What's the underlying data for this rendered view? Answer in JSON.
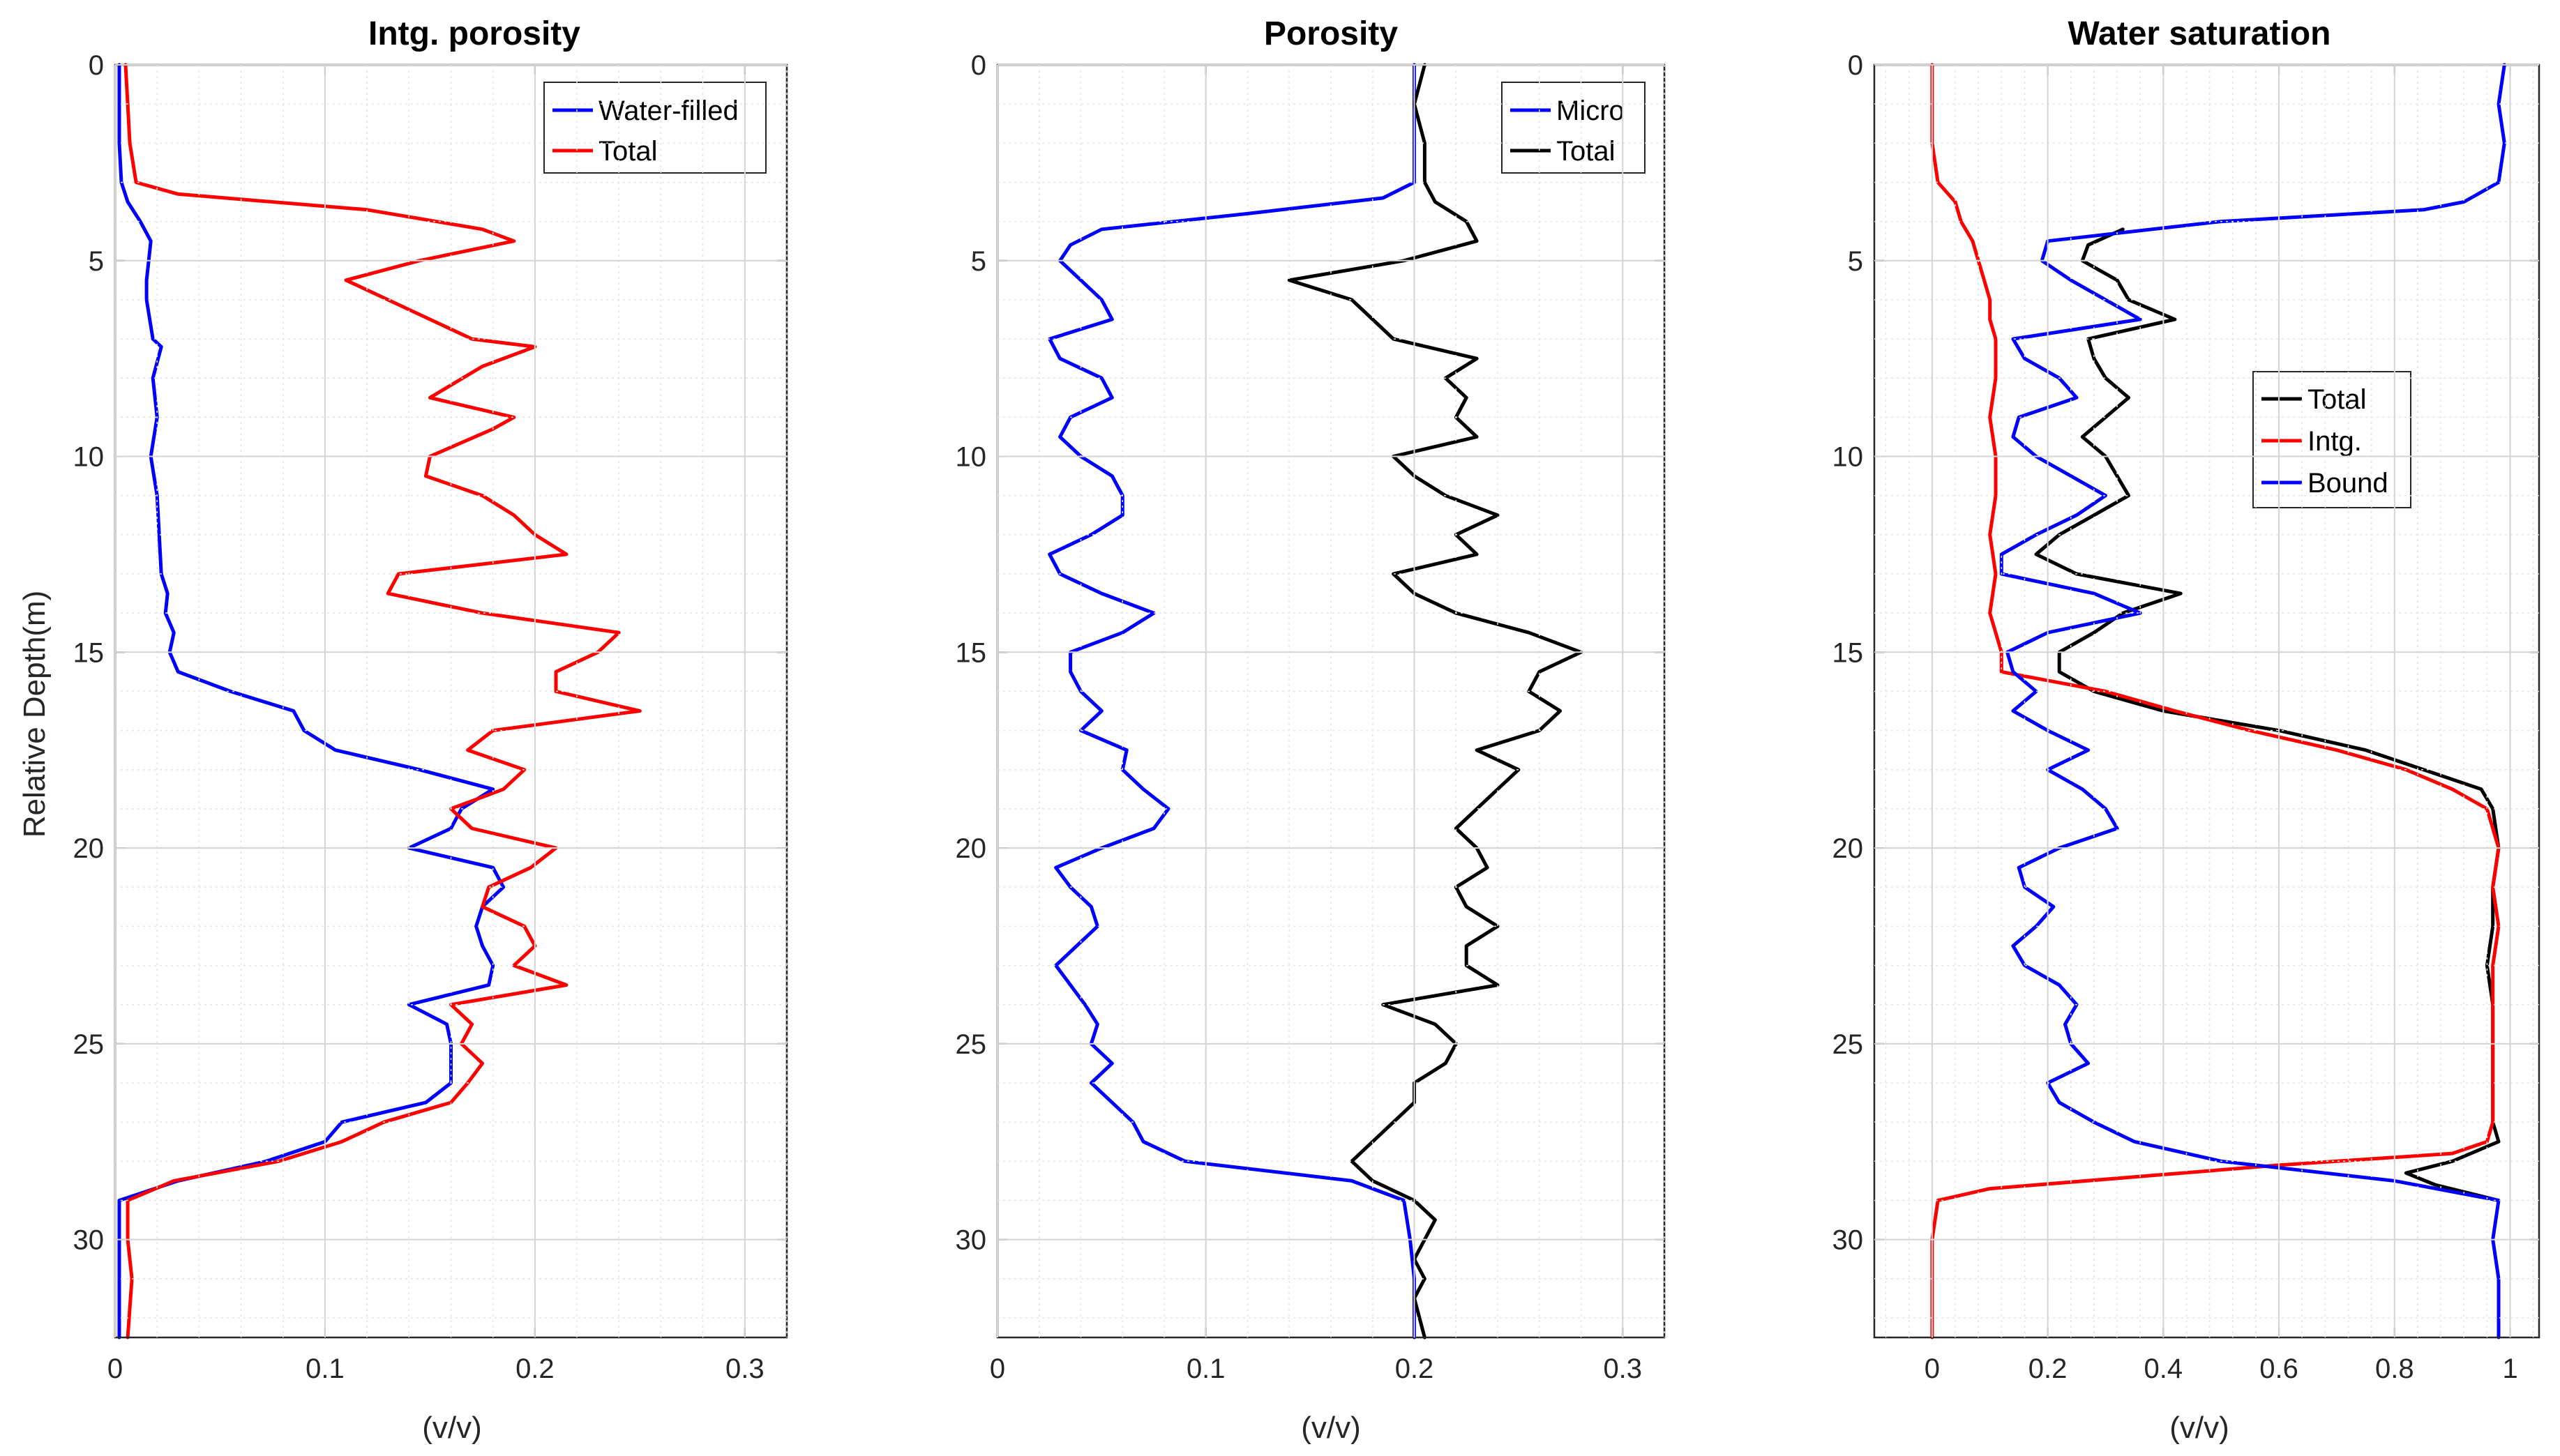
{
  "chart_data": [
    {
      "type": "line",
      "title": "Intg. porosity",
      "xlabel": "(v/v)",
      "ylabel": "Relative Depth(m)",
      "xlim": [
        0,
        0.32
      ],
      "ylim": [
        0,
        32.5
      ],
      "xticks": [
        0,
        0.1,
        0.2,
        0.3
      ],
      "xtick_labels": [
        "0",
        "0.1",
        "0.2",
        "0.3"
      ],
      "yticks": [
        0,
        5,
        10,
        15,
        20,
        25,
        30
      ],
      "ytick_labels": [
        "0",
        "5",
        "10",
        "15",
        "20",
        "25",
        "30"
      ],
      "grid": true,
      "legend_position": "top-right",
      "series": [
        {
          "name": "Water-filled",
          "color": "#0000ff",
          "depth": [
            0,
            1,
            2,
            3,
            3.5,
            4,
            4.5,
            5,
            5.5,
            6,
            7,
            7.2,
            8,
            9,
            10,
            11,
            12,
            13,
            13.5,
            14,
            14.5,
            15,
            15.5,
            16,
            16.5,
            17,
            17.5,
            18,
            18.5,
            19,
            19.5,
            20,
            20.5,
            21,
            21.5,
            22,
            22.5,
            23,
            23.5,
            24,
            24.5,
            25,
            25.5,
            26,
            26.5,
            27,
            27.5,
            28,
            28.5,
            29,
            30,
            31,
            32.5
          ],
          "values": [
            0.002,
            0.002,
            0.002,
            0.003,
            0.006,
            0.012,
            0.017,
            0.016,
            0.015,
            0.015,
            0.018,
            0.022,
            0.018,
            0.02,
            0.017,
            0.02,
            0.021,
            0.022,
            0.025,
            0.024,
            0.028,
            0.026,
            0.03,
            0.055,
            0.085,
            0.09,
            0.105,
            0.145,
            0.18,
            0.165,
            0.16,
            0.14,
            0.18,
            0.185,
            0.175,
            0.172,
            0.175,
            0.18,
            0.178,
            0.14,
            0.158,
            0.16,
            0.16,
            0.16,
            0.148,
            0.108,
            0.1,
            0.072,
            0.03,
            0.002,
            0.002,
            0.002,
            0.002
          ]
        },
        {
          "name": "Total",
          "color": "#ff0000",
          "depth": [
            0,
            1,
            2,
            3,
            3.3,
            3.7,
            4.2,
            4.5,
            5,
            5.5,
            6,
            6.5,
            7,
            7.2,
            7.7,
            8.5,
            9,
            9.3,
            10,
            10.5,
            11,
            11.5,
            12,
            12.5,
            13,
            13.5,
            14,
            14.5,
            15,
            15.5,
            16,
            16.5,
            17,
            17.5,
            18,
            18.5,
            19,
            19.5,
            20,
            20.5,
            21,
            21.5,
            22,
            22.5,
            23,
            23.5,
            24,
            24.5,
            25,
            25.5,
            26,
            26.5,
            27,
            27.5,
            28,
            28.5,
            29,
            30,
            31,
            32.5
          ],
          "values": [
            0.005,
            0.006,
            0.007,
            0.01,
            0.03,
            0.12,
            0.175,
            0.19,
            0.145,
            0.11,
            0.13,
            0.15,
            0.17,
            0.2,
            0.175,
            0.15,
            0.19,
            0.18,
            0.15,
            0.148,
            0.175,
            0.19,
            0.2,
            0.215,
            0.135,
            0.13,
            0.175,
            0.24,
            0.23,
            0.21,
            0.21,
            0.25,
            0.18,
            0.168,
            0.195,
            0.185,
            0.16,
            0.17,
            0.21,
            0.198,
            0.178,
            0.175,
            0.195,
            0.2,
            0.19,
            0.215,
            0.16,
            0.17,
            0.165,
            0.175,
            0.168,
            0.16,
            0.128,
            0.108,
            0.078,
            0.028,
            0.006,
            0.006,
            0.008,
            0.006
          ]
        }
      ]
    },
    {
      "type": "line",
      "title": "Porosity",
      "xlabel": "(v/v)",
      "xlim": [
        0,
        0.32
      ],
      "ylim": [
        0,
        32.5
      ],
      "xticks": [
        0,
        0.1,
        0.2,
        0.3
      ],
      "xtick_labels": [
        "0",
        "0.1",
        "0.2",
        "0.3"
      ],
      "yticks": [
        0,
        5,
        10,
        15,
        20,
        25,
        30
      ],
      "ytick_labels": [
        "0",
        "5",
        "10",
        "15",
        "20",
        "25",
        "30"
      ],
      "grid": true,
      "legend_position": "top-right",
      "series": [
        {
          "name": "Micro",
          "color": "#0000ff",
          "depth": [
            0,
            1,
            2,
            3,
            3.4,
            3.8,
            4.2,
            4.6,
            5,
            5.5,
            6,
            6.5,
            7,
            7.5,
            8,
            8.5,
            9,
            9.5,
            10,
            10.5,
            11,
            11.5,
            12,
            12.5,
            13,
            13.5,
            14,
            14.5,
            15,
            15.5,
            16,
            16.5,
            17,
            17.5,
            18,
            18.5,
            19,
            19.5,
            20,
            20.5,
            21,
            21.5,
            22,
            22.5,
            23,
            23.5,
            24,
            24.5,
            25,
            25.5,
            26,
            26.5,
            27,
            27.5,
            28,
            28.5,
            29,
            30,
            31,
            32.5
          ],
          "values": [
            0.2,
            0.2,
            0.2,
            0.2,
            0.185,
            0.12,
            0.05,
            0.035,
            0.03,
            0.04,
            0.05,
            0.055,
            0.025,
            0.03,
            0.05,
            0.055,
            0.035,
            0.03,
            0.04,
            0.055,
            0.06,
            0.06,
            0.045,
            0.025,
            0.03,
            0.05,
            0.075,
            0.06,
            0.035,
            0.035,
            0.04,
            0.05,
            0.04,
            0.062,
            0.06,
            0.07,
            0.082,
            0.075,
            0.05,
            0.028,
            0.035,
            0.045,
            0.048,
            0.038,
            0.028,
            0.035,
            0.042,
            0.048,
            0.045,
            0.055,
            0.045,
            0.055,
            0.065,
            0.07,
            0.09,
            0.17,
            0.195,
            0.198,
            0.2,
            0.2
          ]
        },
        {
          "name": "Total",
          "color": "#000000",
          "depth": [
            0,
            1,
            2,
            3,
            3.5,
            4,
            4.5,
            5,
            5.5,
            6,
            6.5,
            7,
            7.5,
            8,
            8.5,
            9,
            9.5,
            10,
            10.5,
            11,
            11.5,
            12,
            12.5,
            13,
            13.5,
            14,
            14.5,
            15,
            15.5,
            16,
            16.5,
            17,
            17.5,
            18,
            18.5,
            19,
            19.5,
            20,
            20.5,
            21,
            21.5,
            22,
            22.5,
            23,
            23.5,
            24,
            24.5,
            25,
            25.5,
            26,
            26.5,
            27,
            27.5,
            28,
            28.5,
            29,
            29.5,
            30,
            30.5,
            31,
            31.5,
            32.5
          ],
          "values": [
            0.205,
            0.2,
            0.205,
            0.205,
            0.21,
            0.225,
            0.23,
            0.195,
            0.14,
            0.17,
            0.18,
            0.19,
            0.23,
            0.215,
            0.225,
            0.22,
            0.23,
            0.19,
            0.2,
            0.215,
            0.24,
            0.22,
            0.23,
            0.19,
            0.2,
            0.22,
            0.255,
            0.28,
            0.26,
            0.255,
            0.27,
            0.26,
            0.23,
            0.25,
            0.24,
            0.23,
            0.22,
            0.23,
            0.235,
            0.22,
            0.225,
            0.24,
            0.225,
            0.225,
            0.24,
            0.185,
            0.21,
            0.22,
            0.215,
            0.2,
            0.2,
            0.19,
            0.18,
            0.17,
            0.18,
            0.2,
            0.21,
            0.205,
            0.2,
            0.205,
            0.2,
            0.205
          ]
        }
      ]
    },
    {
      "type": "line",
      "title": "Water saturation",
      "xlabel": "(v/v)",
      "xlim": [
        -0.1,
        1.05
      ],
      "ylim": [
        0,
        32.5
      ],
      "xticks": [
        0,
        0.2,
        0.4,
        0.6,
        0.8,
        1
      ],
      "xtick_labels": [
        "0",
        "0.2",
        "0.4",
        "0.6",
        "0.8",
        "1"
      ],
      "yticks": [
        0,
        5,
        10,
        15,
        20,
        25,
        30
      ],
      "ytick_labels": [
        "0",
        "5",
        "10",
        "15",
        "20",
        "25",
        "30"
      ],
      "grid": true,
      "legend_position": "center-right",
      "series": [
        {
          "name": "Total",
          "color": "#000000",
          "depth": [
            4.2,
            4.6,
            5,
            5.5,
            6,
            6.5,
            7,
            7.5,
            8,
            8.5,
            9,
            9.5,
            10,
            10.5,
            11,
            11.5,
            12,
            12.5,
            13,
            13.5,
            14,
            14.5,
            15,
            15.5,
            16,
            16.5,
            17,
            17.5,
            18,
            18.5,
            19,
            20,
            21,
            22,
            23,
            24,
            25,
            26,
            27,
            27.5,
            28,
            28.3,
            28.6,
            29
          ],
          "values": [
            0.33,
            0.27,
            0.26,
            0.32,
            0.34,
            0.42,
            0.27,
            0.28,
            0.3,
            0.34,
            0.3,
            0.26,
            0.3,
            0.32,
            0.34,
            0.28,
            0.22,
            0.18,
            0.25,
            0.43,
            0.33,
            0.28,
            0.22,
            0.22,
            0.28,
            0.4,
            0.6,
            0.75,
            0.85,
            0.95,
            0.97,
            0.98,
            0.97,
            0.97,
            0.96,
            0.97,
            0.97,
            0.97,
            0.97,
            0.98,
            0.9,
            0.82,
            0.87,
            0.98
          ]
        },
        {
          "name": "Intg.",
          "color": "#ff0000",
          "depth": [
            0,
            1,
            2,
            3,
            3.5,
            4,
            4.5,
            5,
            5.5,
            6,
            6.5,
            7,
            8,
            9,
            10,
            11,
            12,
            13,
            14,
            15,
            15.5,
            16,
            16.5,
            17,
            17.5,
            18,
            18.5,
            19,
            20,
            21,
            22,
            23,
            24,
            25,
            26,
            27,
            27.5,
            27.8,
            28.1,
            28.4,
            28.7,
            29,
            30,
            31,
            32.5
          ],
          "values": [
            0,
            0,
            0,
            0.01,
            0.04,
            0.05,
            0.07,
            0.08,
            0.09,
            0.1,
            0.1,
            0.11,
            0.11,
            0.1,
            0.11,
            0.11,
            0.1,
            0.11,
            0.1,
            0.12,
            0.12,
            0.3,
            0.42,
            0.55,
            0.7,
            0.82,
            0.9,
            0.96,
            0.98,
            0.97,
            0.98,
            0.97,
            0.97,
            0.97,
            0.97,
            0.97,
            0.96,
            0.9,
            0.6,
            0.35,
            0.1,
            0.01,
            0,
            0,
            0
          ]
        },
        {
          "name": "Bound",
          "color": "#0000ff",
          "depth": [
            0,
            1,
            2,
            3,
            3.5,
            3.7,
            4,
            4.5,
            5,
            5.5,
            6,
            6.5,
            7,
            7.5,
            8,
            8.5,
            9,
            9.5,
            10,
            10.5,
            11,
            11.5,
            12,
            12.5,
            13,
            13.5,
            14,
            14.5,
            15,
            15.5,
            16,
            16.5,
            17,
            17.5,
            18,
            18.5,
            19,
            19.5,
            20,
            20.5,
            21,
            21.5,
            22,
            22.5,
            23,
            23.5,
            24,
            24.5,
            25,
            25.5,
            26,
            26.5,
            27,
            27.5,
            28,
            28.5,
            29,
            30,
            31,
            32.5
          ],
          "values": [
            0.99,
            0.98,
            0.99,
            0.98,
            0.92,
            0.85,
            0.5,
            0.2,
            0.19,
            0.24,
            0.3,
            0.36,
            0.14,
            0.16,
            0.22,
            0.25,
            0.15,
            0.14,
            0.18,
            0.24,
            0.3,
            0.25,
            0.18,
            0.12,
            0.12,
            0.28,
            0.36,
            0.2,
            0.13,
            0.14,
            0.18,
            0.14,
            0.2,
            0.27,
            0.2,
            0.26,
            0.3,
            0.32,
            0.22,
            0.15,
            0.16,
            0.21,
            0.18,
            0.14,
            0.16,
            0.22,
            0.25,
            0.23,
            0.24,
            0.27,
            0.2,
            0.22,
            0.28,
            0.35,
            0.5,
            0.8,
            0.98,
            0.97,
            0.98,
            0.98
          ]
        }
      ]
    }
  ]
}
